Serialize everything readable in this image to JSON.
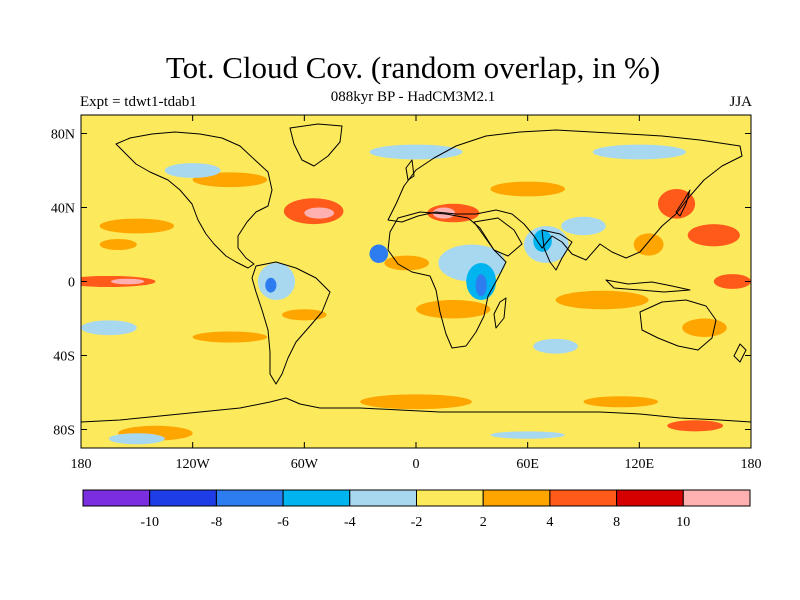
{
  "title": "Tot. Cloud Cov. (random overlap, in %)",
  "subtitle": "088kyr BP - HadCM3M2.1",
  "experiment": "Expt = tdwt1-tdab1",
  "season": "JJA",
  "map": {
    "projection": "cylindrical equidistant",
    "lon_range": [
      -180,
      180
    ],
    "lat_range": [
      -90,
      90
    ],
    "background_level_color": "#fde95c",
    "x_ticks": [
      {
        "value": -180,
        "label": "180"
      },
      {
        "value": -120,
        "label": "120W"
      },
      {
        "value": -60,
        "label": "60W"
      },
      {
        "value": 0,
        "label": "0"
      },
      {
        "value": 60,
        "label": "60E"
      },
      {
        "value": 120,
        "label": "120E"
      },
      {
        "value": 180,
        "label": "180"
      }
    ],
    "y_ticks": [
      {
        "value": 80,
        "label": "80N"
      },
      {
        "value": 40,
        "label": "40N"
      },
      {
        "value": 0,
        "label": "0"
      },
      {
        "value": -40,
        "label": "40S"
      },
      {
        "value": -80,
        "label": "80S"
      }
    ]
  },
  "colorbar": {
    "colors": [
      "#7b2de0",
      "#1f3de6",
      "#2d7df0",
      "#00b4f0",
      "#a8d8f0",
      "#fde95c",
      "#ffa500",
      "#ff5a1a",
      "#d60000",
      "#ffb0b0"
    ],
    "labels": [
      "-10",
      "-8",
      "-6",
      "-4",
      "-2",
      "2",
      "4",
      "8",
      "10"
    ]
  },
  "anomaly_features": [
    {
      "lon": -55,
      "lat": 38,
      "rx": 16,
      "ry": 7,
      "color": "#ff5a1a"
    },
    {
      "lon": -52,
      "lat": 37,
      "rx": 8,
      "ry": 3,
      "color": "#ffb0b0"
    },
    {
      "lon": 20,
      "lat": 37,
      "rx": 14,
      "ry": 5,
      "color": "#ff5a1a"
    },
    {
      "lon": 15,
      "lat": 37,
      "rx": 6,
      "ry": 3,
      "color": "#ffb0b0"
    },
    {
      "lon": -165,
      "lat": 0,
      "rx": 25,
      "ry": 3,
      "color": "#ff5a1a"
    },
    {
      "lon": -155,
      "lat": 0,
      "rx": 9,
      "ry": 1.5,
      "color": "#ffb0b0"
    },
    {
      "lon": 140,
      "lat": 42,
      "rx": 10,
      "ry": 8,
      "color": "#ff5a1a"
    },
    {
      "lon": 160,
      "lat": 25,
      "rx": 14,
      "ry": 6,
      "color": "#ff5a1a"
    },
    {
      "lon": 125,
      "lat": 20,
      "rx": 8,
      "ry": 6,
      "color": "#ffa500"
    },
    {
      "lon": 170,
      "lat": 0,
      "rx": 10,
      "ry": 4,
      "color": "#ff5a1a"
    },
    {
      "lon": 100,
      "lat": -10,
      "rx": 25,
      "ry": 5,
      "color": "#ffa500"
    },
    {
      "lon": 155,
      "lat": -25,
      "rx": 12,
      "ry": 5,
      "color": "#ffa500"
    },
    {
      "lon": -5,
      "lat": 10,
      "rx": 12,
      "ry": 4,
      "color": "#ffa500"
    },
    {
      "lon": -150,
      "lat": 30,
      "rx": 20,
      "ry": 4,
      "color": "#ffa500"
    },
    {
      "lon": -160,
      "lat": 20,
      "rx": 10,
      "ry": 3,
      "color": "#ffa500"
    },
    {
      "lon": -100,
      "lat": -30,
      "rx": 20,
      "ry": 3,
      "color": "#ffa500"
    },
    {
      "lon": 20,
      "lat": -15,
      "rx": 20,
      "ry": 5,
      "color": "#ffa500"
    },
    {
      "lon": -60,
      "lat": -18,
      "rx": 12,
      "ry": 3,
      "color": "#ffa500"
    },
    {
      "lon": -100,
      "lat": 55,
      "rx": 20,
      "ry": 4,
      "color": "#ffa500"
    },
    {
      "lon": 60,
      "lat": 50,
      "rx": 20,
      "ry": 4,
      "color": "#ffa500"
    },
    {
      "lon": 0,
      "lat": -65,
      "rx": 30,
      "ry": 4,
      "color": "#ffa500"
    },
    {
      "lon": -140,
      "lat": -82,
      "rx": 20,
      "ry": 4,
      "color": "#ffa500"
    },
    {
      "lon": 110,
      "lat": -65,
      "rx": 20,
      "ry": 3,
      "color": "#ffa500"
    },
    {
      "lon": 150,
      "lat": -78,
      "rx": 15,
      "ry": 3,
      "color": "#ff5a1a"
    },
    {
      "lon": -120,
      "lat": 60,
      "rx": 15,
      "ry": 4,
      "color": "#a8d8f0"
    },
    {
      "lon": 30,
      "lat": 10,
      "rx": 18,
      "ry": 10,
      "color": "#a8d8f0"
    },
    {
      "lon": 35,
      "lat": 0,
      "rx": 8,
      "ry": 10,
      "color": "#00b4f0"
    },
    {
      "lon": 35,
      "lat": -2,
      "rx": 3,
      "ry": 6,
      "color": "#2d7df0"
    },
    {
      "lon": 70,
      "lat": 20,
      "rx": 12,
      "ry": 10,
      "color": "#a8d8f0"
    },
    {
      "lon": 68,
      "lat": 22,
      "rx": 5,
      "ry": 6,
      "color": "#00b4f0"
    },
    {
      "lon": 90,
      "lat": 30,
      "rx": 12,
      "ry": 5,
      "color": "#a8d8f0"
    },
    {
      "lon": -75,
      "lat": 0,
      "rx": 10,
      "ry": 10,
      "color": "#a8d8f0"
    },
    {
      "lon": -78,
      "lat": -2,
      "rx": 3,
      "ry": 4,
      "color": "#2d7df0"
    },
    {
      "lon": -165,
      "lat": -25,
      "rx": 15,
      "ry": 4,
      "color": "#a8d8f0"
    },
    {
      "lon": 0,
      "lat": 70,
      "rx": 25,
      "ry": 4,
      "color": "#a8d8f0"
    },
    {
      "lon": 120,
      "lat": 70,
      "rx": 25,
      "ry": 4,
      "color": "#a8d8f0"
    },
    {
      "lon": -150,
      "lat": -85,
      "rx": 15,
      "ry": 3,
      "color": "#a8d8f0"
    },
    {
      "lon": 60,
      "lat": -83,
      "rx": 20,
      "ry": 2,
      "color": "#a8d8f0"
    },
    {
      "lon": 75,
      "lat": -35,
      "rx": 12,
      "ry": 4,
      "color": "#a8d8f0"
    },
    {
      "lon": -20,
      "lat": 15,
      "rx": 5,
      "ry": 5,
      "color": "#2d7df0"
    }
  ]
}
